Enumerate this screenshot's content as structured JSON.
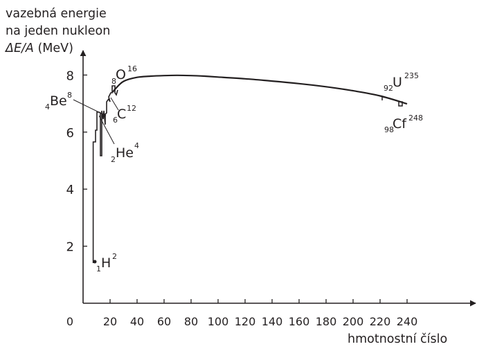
{
  "chart_data": {
    "type": "line",
    "title": "",
    "ylabel_lines": [
      "vazebná energie",
      "na jeden nukleon"
    ],
    "ylabel_symbol": "ΔE/A",
    "ylabel_unit": "(MeV)",
    "xlabel": "hmotnostní číslo",
    "xlim": [
      0,
      260
    ],
    "ylim": [
      0,
      8.9
    ],
    "grid": false,
    "legend": "none",
    "x_ticks": [
      "0",
      "20",
      "40",
      "60",
      "80",
      "100",
      "120",
      "140",
      "160",
      "180",
      "200",
      "220",
      "240"
    ],
    "y_ticks": [
      "2",
      "4",
      "6",
      "8"
    ],
    "series": [
      {
        "x": [
          22,
          24,
          30,
          40,
          50,
          60,
          70,
          80,
          90,
          100,
          120,
          140,
          160,
          180,
          200,
          220,
          240
        ],
        "y": [
          7.4,
          7.52,
          7.78,
          7.92,
          7.96,
          7.98,
          7.99,
          7.98,
          7.96,
          7.93,
          7.87,
          7.79,
          7.7,
          7.59,
          7.45,
          7.27,
          6.99
        ]
      }
    ],
    "light_nuclei_points": [
      {
        "x": 2,
        "y": 1.5,
        "symbol": "H",
        "Z": "1",
        "A": "2"
      },
      {
        "x": 4,
        "y": 6.8,
        "symbol": "He",
        "Z": "2",
        "A": "4"
      },
      {
        "x": 8,
        "y": 7.0,
        "symbol": "Be",
        "Z": "4",
        "A": "8"
      },
      {
        "x": 12,
        "y": 7.4,
        "symbol": "C",
        "Z": "6",
        "A": "12"
      },
      {
        "x": 16,
        "y": 7.6,
        "symbol": "O",
        "Z": "8",
        "A": "16"
      }
    ],
    "annotations": [
      {
        "symbol": "U",
        "Z": "92",
        "A": "235",
        "x": 235,
        "y": 7.29
      },
      {
        "symbol": "Cf",
        "Z": "98",
        "A": "248",
        "x": 248,
        "y": 7.08
      }
    ]
  }
}
